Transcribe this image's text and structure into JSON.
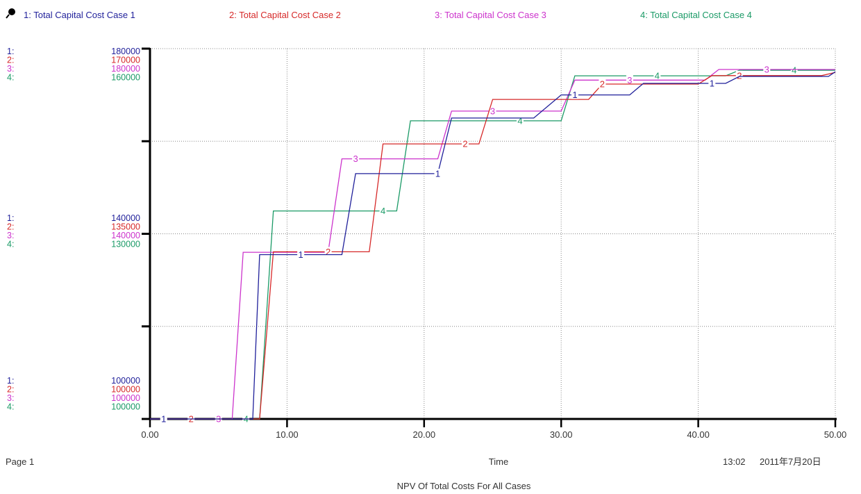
{
  "colors": {
    "s1": "#1f1f9a",
    "s2": "#d62828",
    "s3": "#cc33cc",
    "s4": "#1a9a66",
    "axis": "#000000",
    "grid": "#888888",
    "text": "#333333"
  },
  "icons": {
    "header": "pin-icon"
  },
  "footer": {
    "page": "Page 1",
    "xlabel": "Time",
    "time": "13:02",
    "date": "2011年7月20日",
    "title": "NPV Of Total Costs For All Cases"
  },
  "chart_data": {
    "type": "line",
    "title": "NPV Of Total Costs For All Cases",
    "xlabel": "Time",
    "xlim": [
      0,
      50
    ],
    "x_ticks": [
      "0.00",
      "10.00",
      "20.00",
      "30.00",
      "40.00",
      "50.00"
    ],
    "grid": true,
    "legend_placement": "top",
    "series": [
      {
        "name": "1: Total Capital Cost Case 1",
        "num": "1",
        "ylim": [
          100000,
          180000
        ],
        "ticks": {
          "top": "180000",
          "mid": "140000",
          "bottom": "100000"
        },
        "step_points": [
          [
            0,
            100000
          ],
          [
            7.5,
            100000
          ],
          [
            8,
            135500
          ],
          [
            14,
            135500
          ],
          [
            15,
            153000
          ],
          [
            21,
            153000
          ],
          [
            22,
            165000
          ],
          [
            28,
            165000
          ],
          [
            30,
            170000
          ],
          [
            35,
            170000
          ],
          [
            36,
            172500
          ],
          [
            42,
            172500
          ],
          [
            43,
            174000
          ],
          [
            49.5,
            174000
          ],
          [
            50,
            175000
          ]
        ],
        "labels_x": [
          1,
          11,
          21,
          31,
          41
        ]
      },
      {
        "name": "2: Total Capital Cost Case 2",
        "num": "2",
        "ylim": [
          100000,
          170000
        ],
        "ticks": {
          "top": "170000",
          "mid": "135000",
          "bottom": "100000"
        },
        "step_points": [
          [
            0,
            100000
          ],
          [
            8,
            100000
          ],
          [
            9,
            131600
          ],
          [
            16,
            131600
          ],
          [
            17,
            152000
          ],
          [
            24,
            152000
          ],
          [
            25,
            160400
          ],
          [
            32,
            160400
          ],
          [
            33,
            163300
          ],
          [
            40,
            163300
          ],
          [
            41,
            164900
          ],
          [
            49,
            164900
          ],
          [
            50,
            165500
          ]
        ],
        "labels_x": [
          3,
          13,
          23,
          33,
          43
        ]
      },
      {
        "name": "3: Total Capital Cost Case 3",
        "num": "3",
        "ylim": [
          100000,
          180000
        ],
        "ticks": {
          "top": "180000",
          "mid": "140000",
          "bottom": "100000"
        },
        "step_points": [
          [
            0,
            100000
          ],
          [
            6,
            100000
          ],
          [
            6.8,
            136000
          ],
          [
            13,
            136000
          ],
          [
            14,
            156200
          ],
          [
            21,
            156200
          ],
          [
            22,
            166500
          ],
          [
            30,
            166500
          ],
          [
            31,
            173200
          ],
          [
            40.5,
            173200
          ],
          [
            41.5,
            175500
          ],
          [
            50,
            175500
          ]
        ],
        "labels_x": [
          5,
          15,
          25,
          35,
          45
        ]
      },
      {
        "name": "4: Total Capital Cost Case 4",
        "num": "4",
        "ylim": [
          100000,
          160000
        ],
        "ticks": {
          "top": "160000",
          "mid": "130000",
          "bottom": "100000"
        },
        "step_points": [
          [
            0,
            100000
          ],
          [
            8,
            100000
          ],
          [
            9,
            133700
          ],
          [
            18,
            133700
          ],
          [
            19,
            148300
          ],
          [
            30,
            148300
          ],
          [
            31,
            155600
          ],
          [
            42,
            155600
          ],
          [
            43,
            156500
          ],
          [
            50,
            156500
          ]
        ],
        "labels_x": [
          7,
          17,
          27,
          37,
          47
        ]
      }
    ]
  }
}
